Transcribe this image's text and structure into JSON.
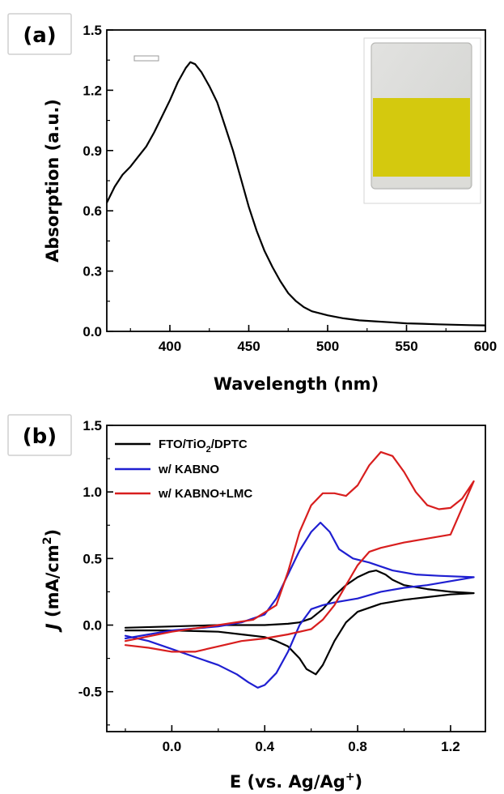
{
  "chart_data": [
    {
      "panel_label": "(a)",
      "type": "line",
      "xlabel": "Wavelength (nm)",
      "ylabel": "Absorption (a.u.)",
      "xlim": [
        360,
        600
      ],
      "ylim": [
        0.0,
        1.5
      ],
      "xticks": [
        400,
        450,
        500,
        550,
        600
      ],
      "xtick_labels": [
        "400",
        "450",
        "500",
        "550",
        "600"
      ],
      "yticks": [
        0.0,
        0.3,
        0.6,
        0.9,
        1.2,
        1.5
      ],
      "ytick_labels": [
        "0.0",
        "0.3",
        "0.6",
        "0.9",
        "1.2",
        "1.5"
      ],
      "grid": false,
      "inset": "photo of yellow film on glass substrate, top-right",
      "series": [
        {
          "color": "#000000",
          "x": [
            360,
            365,
            370,
            375,
            380,
            385,
            390,
            395,
            400,
            405,
            410,
            413,
            416,
            420,
            425,
            430,
            435,
            440,
            445,
            450,
            455,
            460,
            465,
            470,
            475,
            480,
            485,
            490,
            495,
            500,
            510,
            520,
            530,
            540,
            550,
            560,
            570,
            580,
            590,
            600
          ],
          "y": [
            0.64,
            0.72,
            0.78,
            0.82,
            0.87,
            0.92,
            0.99,
            1.07,
            1.15,
            1.24,
            1.31,
            1.34,
            1.33,
            1.29,
            1.22,
            1.14,
            1.02,
            0.9,
            0.76,
            0.62,
            0.5,
            0.4,
            0.32,
            0.25,
            0.19,
            0.15,
            0.12,
            0.1,
            0.09,
            0.08,
            0.065,
            0.055,
            0.05,
            0.045,
            0.04,
            0.038,
            0.035,
            0.033,
            0.031,
            0.03
          ]
        }
      ]
    },
    {
      "panel_label": "(b)",
      "type": "line",
      "xlabel": "E (vs. Ag/Ag",
      "xlabel_sup": "+",
      "xlabel_end": ")",
      "ylabel_italic": "J",
      "ylabel": " (mA/cm",
      "ylabel_sup": "2",
      "ylabel_end": ")",
      "xlim": [
        -0.28,
        1.35
      ],
      "ylim": [
        -0.8,
        1.5
      ],
      "xticks": [
        0.0,
        0.4,
        0.8,
        1.2
      ],
      "xtick_labels": [
        "0.0",
        "0.4",
        "0.8",
        "1.2"
      ],
      "yticks": [
        -0.5,
        0.0,
        0.5,
        1.0,
        1.5
      ],
      "ytick_labels": [
        "-0.5",
        "0.0",
        "0.5",
        "1.0",
        "1.5"
      ],
      "grid": false,
      "legend": "top-left",
      "series": [
        {
          "name": "FTO/TiO",
          "name_sub": "2",
          "name_end": "/DPTC",
          "color": "#000000",
          "x": [
            -0.2,
            0.0,
            0.2,
            0.4,
            0.5,
            0.55,
            0.6,
            0.65,
            0.7,
            0.75,
            0.8,
            0.85,
            0.88,
            0.92,
            0.95,
            1.0,
            1.1,
            1.2,
            1.3,
            1.2,
            1.1,
            1.0,
            0.9,
            0.8,
            0.75,
            0.7,
            0.65,
            0.62,
            0.58,
            0.55,
            0.5,
            0.45,
            0.4,
            0.3,
            0.2,
            0.0,
            -0.2
          ],
          "y": [
            -0.02,
            -0.01,
            0.0,
            0.0,
            0.01,
            0.02,
            0.05,
            0.12,
            0.22,
            0.3,
            0.36,
            0.4,
            0.41,
            0.38,
            0.34,
            0.3,
            0.27,
            0.25,
            0.24,
            0.23,
            0.21,
            0.19,
            0.16,
            0.1,
            0.02,
            -0.12,
            -0.3,
            -0.37,
            -0.33,
            -0.25,
            -0.16,
            -0.12,
            -0.09,
            -0.07,
            -0.05,
            -0.04,
            -0.04
          ]
        },
        {
          "name": "w/ KABNO",
          "color": "#1f1fd1",
          "x": [
            -0.2,
            0.0,
            0.2,
            0.3,
            0.4,
            0.45,
            0.5,
            0.55,
            0.6,
            0.64,
            0.68,
            0.72,
            0.78,
            0.85,
            0.95,
            1.05,
            1.15,
            1.3,
            1.2,
            1.1,
            1.0,
            0.9,
            0.8,
            0.7,
            0.65,
            0.6,
            0.55,
            0.5,
            0.45,
            0.4,
            0.37,
            0.33,
            0.28,
            0.2,
            0.1,
            0.0,
            -0.1,
            -0.2
          ],
          "y": [
            -0.1,
            -0.04,
            -0.01,
            0.02,
            0.08,
            0.2,
            0.38,
            0.56,
            0.7,
            0.77,
            0.7,
            0.57,
            0.5,
            0.47,
            0.41,
            0.38,
            0.37,
            0.36,
            0.33,
            0.3,
            0.28,
            0.25,
            0.2,
            0.17,
            0.15,
            0.12,
            0.0,
            -0.2,
            -0.36,
            -0.45,
            -0.47,
            -0.43,
            -0.37,
            -0.3,
            -0.24,
            -0.18,
            -0.12,
            -0.08
          ]
        },
        {
          "name": "w/ KABNO+LMC",
          "color": "#d81e1e",
          "x": [
            -0.2,
            0.0,
            0.2,
            0.35,
            0.45,
            0.5,
            0.55,
            0.6,
            0.65,
            0.7,
            0.75,
            0.8,
            0.85,
            0.9,
            0.95,
            1.0,
            1.05,
            1.1,
            1.15,
            1.2,
            1.25,
            1.3,
            1.2,
            1.1,
            1.0,
            0.9,
            0.85,
            0.8,
            0.75,
            0.7,
            0.65,
            0.6,
            0.5,
            0.4,
            0.3,
            0.2,
            0.1,
            0.0,
            -0.1,
            -0.2
          ],
          "y": [
            -0.12,
            -0.05,
            0.0,
            0.04,
            0.15,
            0.4,
            0.7,
            0.9,
            0.99,
            0.99,
            0.97,
            1.05,
            1.2,
            1.3,
            1.27,
            1.15,
            1.0,
            0.9,
            0.87,
            0.88,
            0.95,
            1.08,
            0.68,
            0.65,
            0.62,
            0.58,
            0.55,
            0.45,
            0.3,
            0.15,
            0.04,
            -0.03,
            -0.07,
            -0.1,
            -0.12,
            -0.16,
            -0.2,
            -0.2,
            -0.17,
            -0.15
          ]
        }
      ]
    }
  ]
}
